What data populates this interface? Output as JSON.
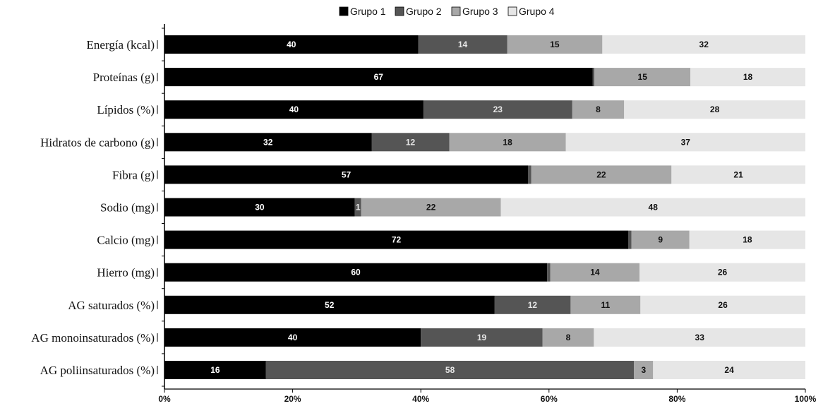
{
  "chart_data": {
    "type": "bar",
    "orientation": "horizontal",
    "stacked": "percent",
    "categories": [
      "Energía (kcal)",
      "Proteínas (g)",
      "Lípidos (%)",
      "Hidratos de carbono (g)",
      "Fibra (g)",
      "Sodio (mg)",
      "Calcio (mg)",
      "Hierro (mg)",
      "AG saturados (%)",
      "AG monoinsaturados (%)",
      "AG poliinsaturados (%)"
    ],
    "series": [
      {
        "name": "Grupo 1",
        "color": "#000000",
        "label_color": "#ffffff",
        "values": [
          40,
          67,
          40,
          32,
          57,
          30,
          72,
          60,
          52,
          40,
          16
        ]
      },
      {
        "name": "Grupo 2",
        "color": "#555555",
        "label_color": "#e6e6e6",
        "values": [
          14,
          0.3,
          23,
          12,
          0.5,
          1,
          0.5,
          0.5,
          12,
          19,
          58
        ]
      },
      {
        "name": "Grupo 3",
        "color": "#a8a8a8",
        "label_color": "#111111",
        "values": [
          15,
          15,
          8,
          18,
          22,
          22,
          9,
          14,
          11,
          8,
          3
        ]
      },
      {
        "name": "Grupo 4",
        "color": "#e6e6e6",
        "label_color": "#111111",
        "values": [
          32,
          18,
          28,
          37,
          21,
          48,
          18,
          26,
          26,
          33,
          24
        ]
      }
    ],
    "data_labels": [
      [
        "40",
        "14",
        "15",
        "32"
      ],
      [
        "67",
        "",
        "15",
        "18"
      ],
      [
        "40",
        "23",
        "8",
        "28"
      ],
      [
        "32",
        "12",
        "18",
        "37"
      ],
      [
        "57",
        "",
        "22",
        "21"
      ],
      [
        "30",
        "1",
        "22",
        "48"
      ],
      [
        "72",
        "",
        "9",
        "18"
      ],
      [
        "60",
        "",
        "14",
        "26"
      ],
      [
        "52",
        "12",
        "11",
        "26"
      ],
      [
        "40",
        "19",
        "8",
        "33"
      ],
      [
        "16",
        "58",
        "3",
        "24"
      ]
    ],
    "x_ticks": [
      "0%",
      "20%",
      "40%",
      "60%",
      "80%",
      "100%"
    ],
    "xlim": [
      0,
      100
    ],
    "legend_position": "top-center",
    "grid": false,
    "title": "",
    "xlabel": "",
    "ylabel": ""
  }
}
